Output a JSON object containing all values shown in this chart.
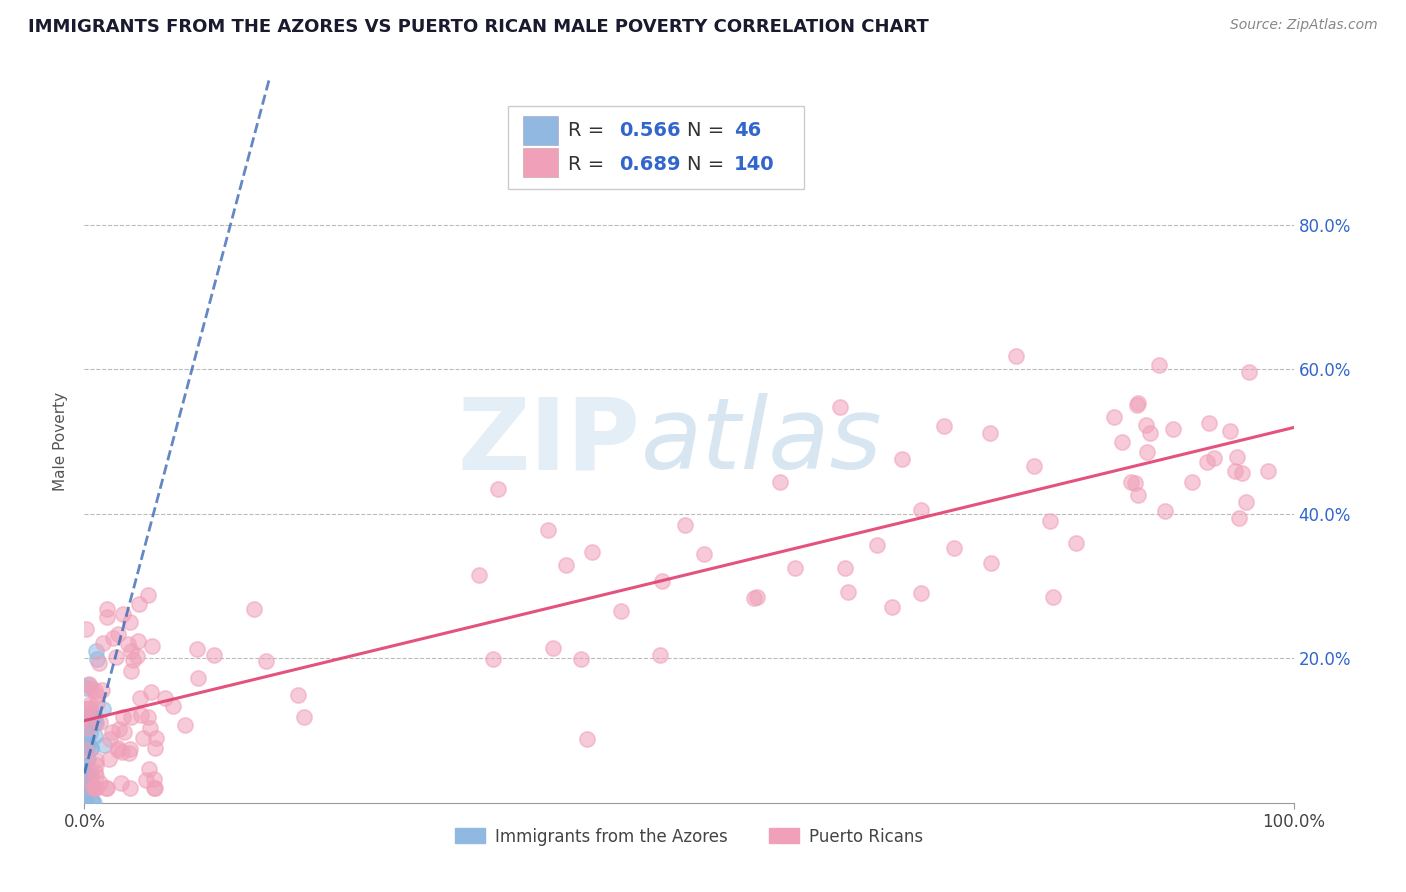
{
  "title": "IMMIGRANTS FROM THE AZORES VS PUERTO RICAN MALE POVERTY CORRELATION CHART",
  "source": "Source: ZipAtlas.com",
  "ylabel": "Male Poverty",
  "r_azores": 0.566,
  "n_azores": 46,
  "r_puerto": 0.689,
  "n_puerto": 140,
  "legend_labels": [
    "Immigrants from the Azores",
    "Puerto Ricans"
  ],
  "azores_color": "#90b8e0",
  "puerto_color": "#f0a0b8",
  "azores_line_color": "#3060b0",
  "puerto_line_color": "#e04070",
  "y_tick_positions": [
    0.2,
    0.4,
    0.6,
    0.8
  ],
  "y_tick_labels": [
    "20.0%",
    "40.0%",
    "60.0%",
    "80.0%"
  ],
  "x_tick_positions": [
    0.0,
    1.0
  ],
  "x_tick_labels": [
    "0.0%",
    "100.0%"
  ],
  "xlim": [
    0.0,
    1.0
  ],
  "ylim": [
    0.0,
    1.0
  ],
  "stats_color": "#3366cc",
  "title_fontsize": 13,
  "source_fontsize": 10,
  "tick_fontsize": 12,
  "stats_fontsize": 14
}
